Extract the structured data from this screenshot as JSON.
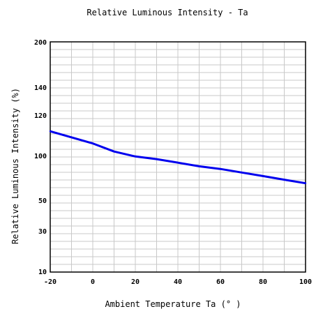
{
  "chart_data": {
    "type": "line",
    "title": "Relative Luminous Intensity - Ta",
    "xlabel": "Ambient Temperature Ta (° )",
    "ylabel": "Relative Luminous Intensity (%)",
    "xlim": [
      -20,
      100
    ],
    "ylim": [
      10,
      200
    ],
    "x_ticks": [
      -20,
      0,
      20,
      40,
      60,
      80,
      100
    ],
    "x_tick_labels": [
      "-20",
      "0",
      "20",
      "40",
      "60",
      "80",
      "100"
    ],
    "y_ticks": [
      10,
      30,
      50,
      100,
      120,
      140,
      200
    ],
    "y_tick_labels": [
      "10",
      "30",
      "50",
      "100",
      "120",
      "140",
      "200"
    ],
    "grid": true,
    "series": [
      {
        "color": "#0000ee",
        "x": [
          -20,
          0,
          10,
          20,
          30,
          40,
          50,
          60,
          70,
          80,
          90,
          100
        ],
        "y": [
          112,
          106,
          102,
          99,
          96,
          92,
          88,
          85,
          81,
          77,
          73,
          69
        ]
      }
    ]
  }
}
